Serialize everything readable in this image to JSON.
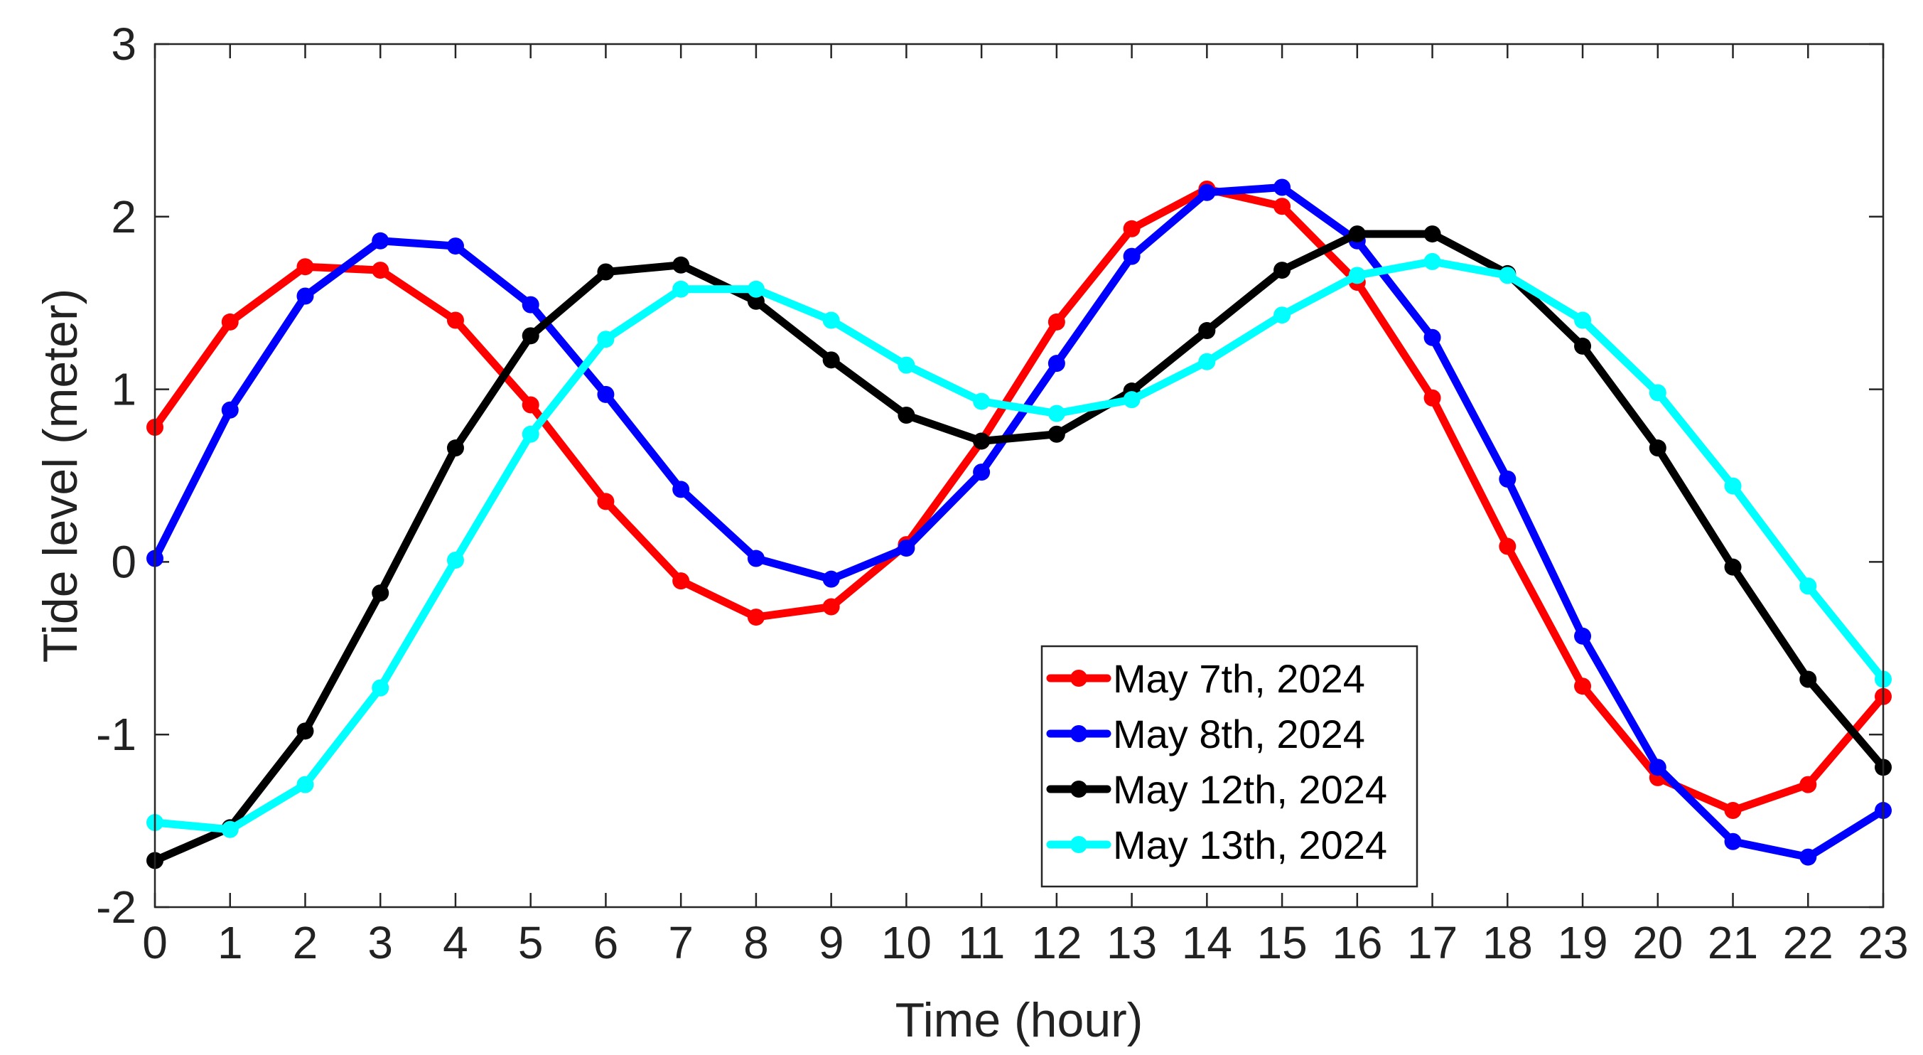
{
  "chart_data": {
    "type": "line",
    "title": "",
    "xlabel": "Time (hour)",
    "ylabel": "Tide level (meter)",
    "xlim": [
      0,
      23
    ],
    "ylim": [
      -2,
      3
    ],
    "xticks": [
      0,
      1,
      2,
      3,
      4,
      5,
      6,
      7,
      8,
      9,
      10,
      11,
      12,
      13,
      14,
      15,
      16,
      17,
      18,
      19,
      20,
      21,
      22,
      23
    ],
    "yticks": [
      -2,
      -1,
      0,
      1,
      2,
      3
    ],
    "grid": false,
    "legend_position": "bottom-center",
    "x": [
      0,
      1,
      2,
      3,
      4,
      5,
      6,
      7,
      8,
      9,
      10,
      11,
      12,
      13,
      14,
      15,
      16,
      17,
      18,
      19,
      20,
      21,
      22,
      23
    ],
    "series": [
      {
        "name": "May 7th, 2024",
        "color": "#ff0000",
        "values": [
          0.78,
          1.39,
          1.71,
          1.69,
          1.4,
          0.91,
          0.35,
          -0.11,
          -0.32,
          -0.26,
          0.1,
          0.7,
          1.39,
          1.93,
          2.16,
          2.06,
          1.62,
          0.95,
          0.09,
          -0.72,
          -1.25,
          -1.44,
          -1.29,
          -0.78
        ]
      },
      {
        "name": "May 8th, 2024",
        "color": "#0000ff",
        "values": [
          0.02,
          0.88,
          1.54,
          1.86,
          1.83,
          1.49,
          0.97,
          0.42,
          0.02,
          -0.1,
          0.08,
          0.52,
          1.15,
          1.77,
          2.14,
          2.17,
          1.86,
          1.3,
          0.48,
          -0.43,
          -1.19,
          -1.62,
          -1.71,
          -1.44
        ]
      },
      {
        "name": "May 12th, 2024",
        "color": "#000000",
        "values": [
          -1.73,
          -1.54,
          -0.98,
          -0.18,
          0.66,
          1.31,
          1.68,
          1.72,
          1.51,
          1.17,
          0.85,
          0.7,
          0.74,
          0.99,
          1.34,
          1.69,
          1.9,
          1.9,
          1.67,
          1.25,
          0.66,
          -0.03,
          -0.68,
          -1.19
        ]
      },
      {
        "name": "May 13th, 2024",
        "color": "#00ffff",
        "values": [
          -1.51,
          -1.55,
          -1.29,
          -0.73,
          0.01,
          0.74,
          1.29,
          1.58,
          1.58,
          1.4,
          1.14,
          0.93,
          0.86,
          0.94,
          1.16,
          1.43,
          1.66,
          1.74,
          1.66,
          1.4,
          0.98,
          0.44,
          -0.14,
          -0.68
        ]
      }
    ]
  }
}
